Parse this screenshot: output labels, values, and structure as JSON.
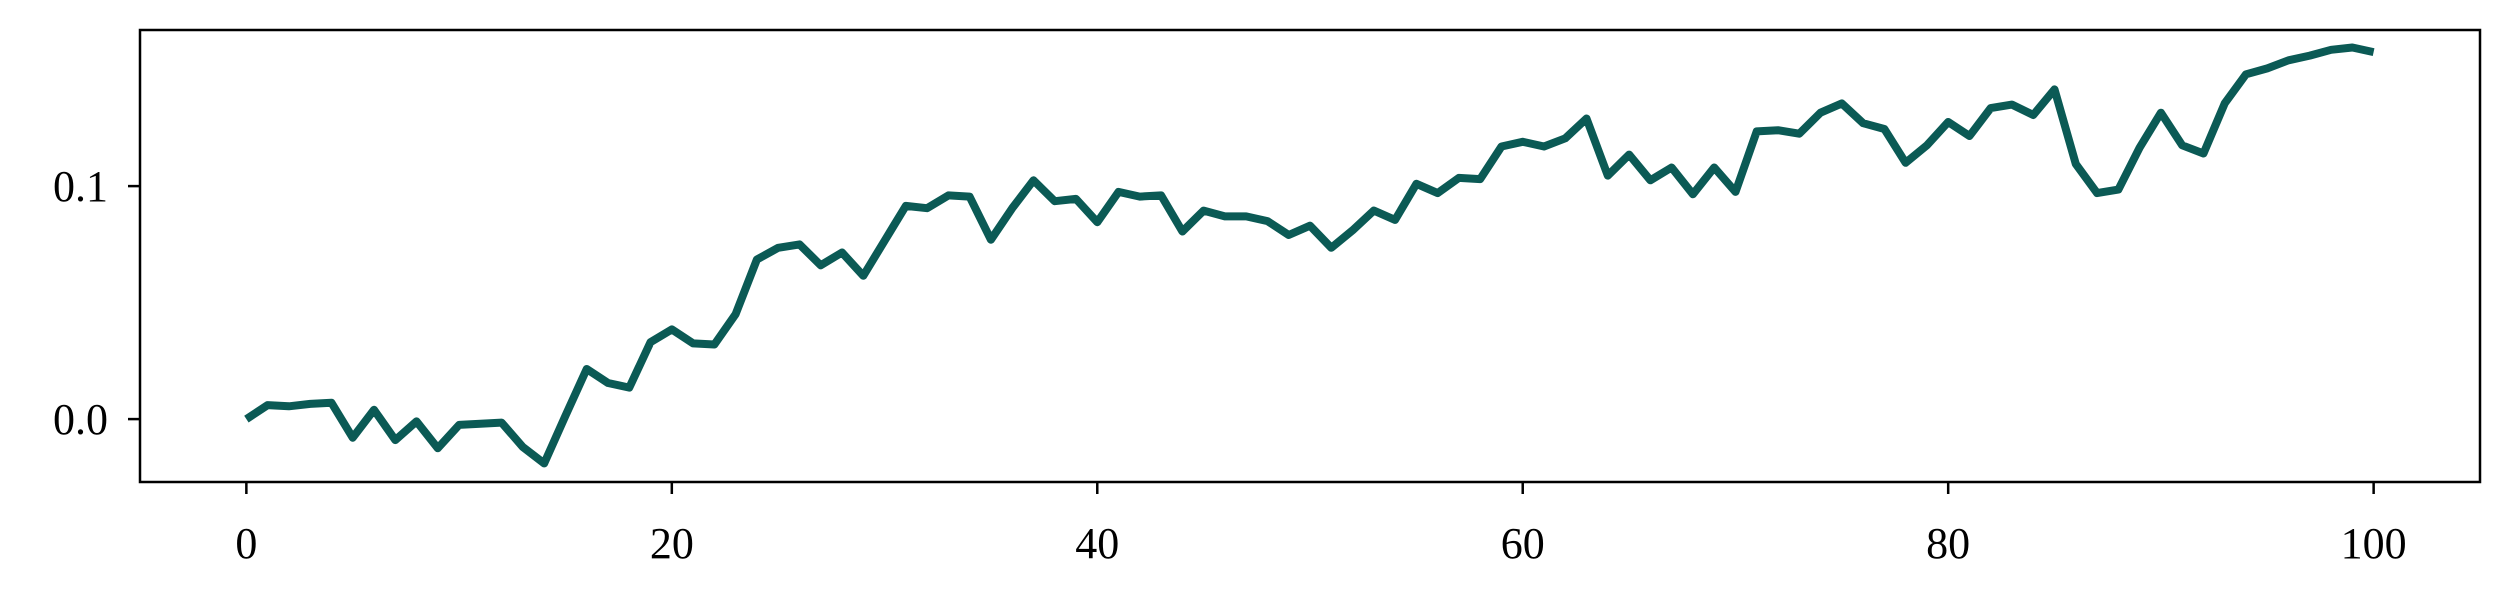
{
  "chart_data": {
    "type": "line",
    "title": "",
    "xlabel": "",
    "ylabel": "",
    "xlim": [
      -5,
      105
    ],
    "ylim": [
      -0.027,
      0.167
    ],
    "xticks": [
      0,
      20,
      40,
      60,
      80,
      100
    ],
    "xtick_labels": [
      "0",
      "20",
      "40",
      "60",
      "80",
      "100"
    ],
    "yticks": [
      0.0,
      0.1
    ],
    "ytick_labels": [
      "0.0",
      "0.1"
    ],
    "grid": false,
    "legend": "none",
    "colors": {
      "series": "#0b5a55",
      "axis": "#000000",
      "background": "#ffffff"
    },
    "series": [
      {
        "x": [
          0,
          1,
          2,
          3,
          4,
          5,
          6,
          7,
          8,
          9,
          10,
          11,
          12,
          13,
          14,
          15,
          16,
          17,
          18,
          19,
          20,
          21,
          22,
          23,
          24,
          25,
          26,
          27,
          28,
          29,
          30,
          31,
          32,
          33,
          34,
          35,
          36,
          37,
          38,
          39,
          40,
          41,
          42,
          43,
          44,
          45,
          46,
          47,
          48,
          49,
          50,
          51,
          52,
          53,
          54,
          55,
          56,
          57,
          58,
          59,
          60,
          61,
          62,
          63,
          64,
          65,
          66,
          67,
          68,
          69,
          70,
          71,
          72,
          73,
          74,
          75,
          76,
          77,
          78,
          79,
          80,
          81,
          82,
          83,
          84,
          85,
          86,
          87,
          88,
          89,
          90,
          91,
          92,
          93,
          94,
          95,
          96,
          97,
          98,
          99,
          100
        ],
        "values": [
          0.0,
          0.006,
          0.0055,
          0.0065,
          0.007,
          -0.008,
          0.004,
          -0.009,
          -0.001,
          -0.0125,
          -0.0025,
          -0.002,
          -0.0015,
          -0.012,
          -0.019,
          0.0015,
          0.0215,
          0.0155,
          0.0135,
          0.033,
          0.0385,
          0.0325,
          0.032,
          0.045,
          0.0685,
          0.0735,
          0.075,
          0.066,
          0.0715,
          0.0615,
          0.0765,
          0.0915,
          0.0905,
          0.096,
          0.0955,
          0.077,
          0.0905,
          0.1025,
          0.0935,
          0.0945,
          0.0845,
          0.0975,
          0.0955,
          0.096,
          0.0805,
          0.0895,
          0.087,
          0.087,
          0.085,
          0.079,
          0.083,
          0.0735,
          0.081,
          0.0895,
          0.0855,
          0.101,
          0.097,
          0.1035,
          0.103,
          0.117,
          0.119,
          0.117,
          0.1205,
          0.129,
          0.1045,
          0.1135,
          0.1025,
          0.108,
          0.0965,
          0.108,
          0.0975,
          0.1235,
          0.124,
          0.1225,
          0.1315,
          0.1355,
          0.127,
          0.1245,
          0.11,
          0.1175,
          0.1275,
          0.1215,
          0.1335,
          0.135,
          0.1305,
          0.1415,
          0.1095,
          0.097,
          0.0985,
          0.1165,
          0.1315,
          0.1175,
          0.114,
          0.1355,
          0.148,
          0.1505,
          0.154,
          0.156,
          0.1585,
          0.1595,
          0.1575
        ]
      }
    ]
  }
}
